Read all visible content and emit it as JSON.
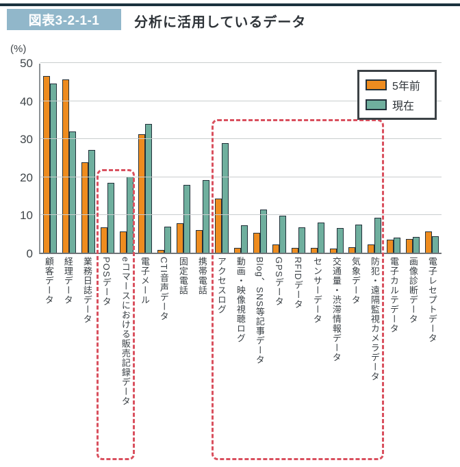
{
  "header": {
    "figure_number": "図表3-2-1-1",
    "title": "分析に活用しているデータ"
  },
  "colors": {
    "series_past": "#ee8c1f",
    "series_current": "#6faf9e",
    "highlight_dashed": "#d9505e",
    "badge_background": "#91b7ca",
    "top_rule": "#1b323e"
  },
  "chart_data": {
    "type": "bar",
    "title": "分析に活用しているデータ",
    "y_unit": "(%)",
    "ylabel": "",
    "xlabel": "",
    "ylim": [
      0,
      50
    ],
    "y_ticks": [
      0,
      10,
      20,
      30,
      40,
      50
    ],
    "grid": true,
    "legend_position": "top-right",
    "categories": [
      "顧客データ",
      "経理データ",
      "業務日誌データ",
      "POSデータ",
      "eコマースにおける販売記録データ",
      "電子メール",
      "CTI音声データ",
      "固定電話",
      "携帯電話",
      "アクセスログ",
      "動画・映像視聴ログ",
      "Blog、SNS等記事データ",
      "GPSデータ",
      "RFIDデータ",
      "センサーデータ",
      "交通量・渋滞情報データ",
      "気象データ",
      "防犯・遠隔監視カメラデータ",
      "電子カルテデータ",
      "画像診断データ",
      "電子レセプトデータ"
    ],
    "series": [
      {
        "name": "5年前",
        "color": "#ee8c1f",
        "values": [
          46.4,
          45.5,
          23.7,
          6.7,
          5.5,
          31.1,
          0.7,
          7.8,
          6.0,
          14.2,
          1.2,
          5.3,
          2.1,
          1.3,
          1.3,
          1.0,
          1.4,
          2.2,
          3.5,
          3.6,
          5.6
        ]
      },
      {
        "name": "現在",
        "color": "#6faf9e",
        "values": [
          44.4,
          31.9,
          27.0,
          18.3,
          20.0,
          33.8,
          6.9,
          17.8,
          19.0,
          28.8,
          7.2,
          11.3,
          9.8,
          6.7,
          8.0,
          6.4,
          7.3,
          9.1,
          4.0,
          4.1,
          4.3
        ]
      }
    ],
    "highlights": [
      {
        "from_index": 3,
        "to_index": 4,
        "top_value": 22.3
      },
      {
        "from_index": 9,
        "to_index": 17,
        "top_value": 35.5
      }
    ]
  }
}
